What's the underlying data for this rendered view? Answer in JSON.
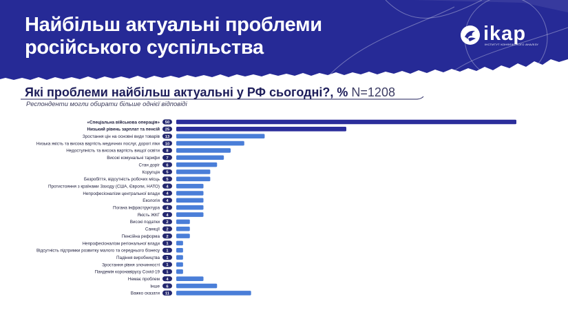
{
  "header": {
    "title_line1": "Найбільш актуальні проблеми",
    "title_line2": "російського суспільства",
    "logo_text": "ikap",
    "logo_subtitle": "ІНСТИТУТ КОНФЛІКТНОГО АНАЛІЗУ",
    "colors": {
      "header_bg": "#262a96",
      "bar": "#4a7ed8",
      "bar_highlight": "#2b2e9b",
      "badge": "#23276f"
    }
  },
  "question": {
    "text": "Які проблеми найбільш актуальні у РФ сьогодні?, %",
    "sample": "N=1208"
  },
  "note": "Респонденти могли обирати більше однієї відповіді",
  "chart_data": {
    "type": "bar",
    "orientation": "horizontal",
    "unit": "%",
    "categories": [
      "«Спеціальна військова операція»",
      "Низький рівень зарплат та пенсій",
      "Зростання цін на основні види товарів",
      "Низька якість та висока вартість медичних послуг, дорогі ліки",
      "Недоступність та висока вартість вищої освіти",
      "Високі комунальні тарифи",
      "Стан доріг",
      "Корупція",
      "Безробіття, відсутність робочих місць",
      "Протистояння з країнами Заходу (США, Європи, НАТО)",
      "Непрофесіоналізм центральної влади",
      "Екологія",
      "Погана інфраструктура",
      "Якість ЖКГ",
      "Високі податки",
      "Санкції",
      "Пенсійна реформа",
      "Непрофесіоналізм регіональної влади",
      "Відсутність підтримки розвитку малого та середнього бізнесу",
      "Падіння виробництва",
      "Зростання рівня злочинності",
      "Пандемія коронавірусу Covid-19",
      "Немає проблем",
      "Інше",
      "Важко сказати"
    ],
    "values": [
      50,
      25,
      13,
      10,
      8,
      7,
      6,
      5,
      5,
      4,
      4,
      4,
      4,
      4,
      2,
      2,
      2,
      1,
      1,
      1,
      1,
      1,
      4,
      6,
      11
    ],
    "highlighted": [
      true,
      true,
      false,
      false,
      false,
      false,
      false,
      false,
      false,
      false,
      false,
      false,
      false,
      false,
      false,
      false,
      false,
      false,
      false,
      false,
      false,
      false,
      false,
      false,
      false
    ],
    "xlim": [
      0,
      50
    ],
    "grid": false,
    "legend": "none"
  }
}
